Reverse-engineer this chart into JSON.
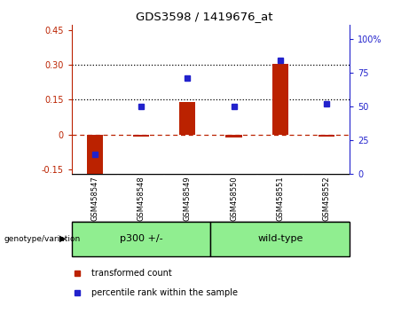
{
  "title": "GDS3598 / 1419676_at",
  "samples": [
    "GSM458547",
    "GSM458548",
    "GSM458549",
    "GSM458550",
    "GSM458551",
    "GSM458552"
  ],
  "bar_values": [
    -0.185,
    -0.008,
    0.14,
    -0.012,
    0.305,
    -0.008
  ],
  "percentile_values": [
    15,
    50,
    71,
    50,
    84,
    52
  ],
  "bar_color": "#BB2200",
  "dot_color": "#2222CC",
  "zero_line_color": "#BB2200",
  "hline_color": "#000000",
  "ylim_left": [
    -0.17,
    0.47
  ],
  "ylim_right": [
    0,
    110
  ],
  "yticks_left": [
    -0.15,
    0.0,
    0.15,
    0.3,
    0.45
  ],
  "yticks_right": [
    0,
    25,
    50,
    75,
    100
  ],
  "ytick_labels_left": [
    "-0.15",
    "0",
    "0.15",
    "0.30",
    "0.45"
  ],
  "ytick_labels_right": [
    "0",
    "25",
    "50",
    "75",
    "100%"
  ],
  "hline_values": [
    0.15,
    0.3
  ],
  "n_group1": 3,
  "n_group2": 3,
  "group1_label": "p300 +/-",
  "group2_label": "wild-type",
  "group_label_text": "genotype/variation",
  "group_color": "#90EE90",
  "legend_bar_label": "transformed count",
  "legend_dot_label": "percentile rank within the sample",
  "bg_color": "#FFFFFF",
  "label_area_color": "#C0C0C0",
  "bar_width": 0.35,
  "marker_size": 5
}
